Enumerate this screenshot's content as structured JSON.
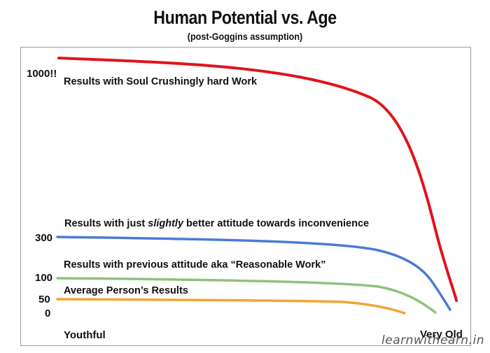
{
  "chart_data": {
    "type": "line",
    "title": "Human Potential vs. Age",
    "subtitle": "(post-Goggins assumption)",
    "xlabel": "",
    "ylabel": "",
    "x_tick_labels": [
      "Youthful",
      "Very Old"
    ],
    "y_tick_labels": [
      {
        "label": "1000!!",
        "value": 1000
      },
      {
        "label": "300",
        "value": 300
      },
      {
        "label": "100",
        "value": 100
      },
      {
        "label": "50",
        "value": 50
      },
      {
        "label": "0",
        "value": 0
      }
    ],
    "grid": false,
    "series": [
      {
        "name": "Results with Soul Crushingly hard Work",
        "label_italic": "",
        "label_rest": "",
        "color": "#e0141b",
        "start": 1030,
        "end": 60
      },
      {
        "name_parts": [
          "Results with just ",
          "slightly",
          " better attitude towards inconvenience"
        ],
        "name": "Results with just slightly better attitude towards inconvenience",
        "color": "#4a7bd6",
        "start": 300,
        "end": 5
      },
      {
        "name": "Results with previous attitude aka “Reasonable Work”",
        "color": "#8fc27a",
        "start": 100,
        "end": 0
      },
      {
        "name": "Average Person’s Results",
        "color": "#f2a533",
        "start": 50,
        "end": 0
      }
    ]
  },
  "watermark": "learnwithearn.in"
}
